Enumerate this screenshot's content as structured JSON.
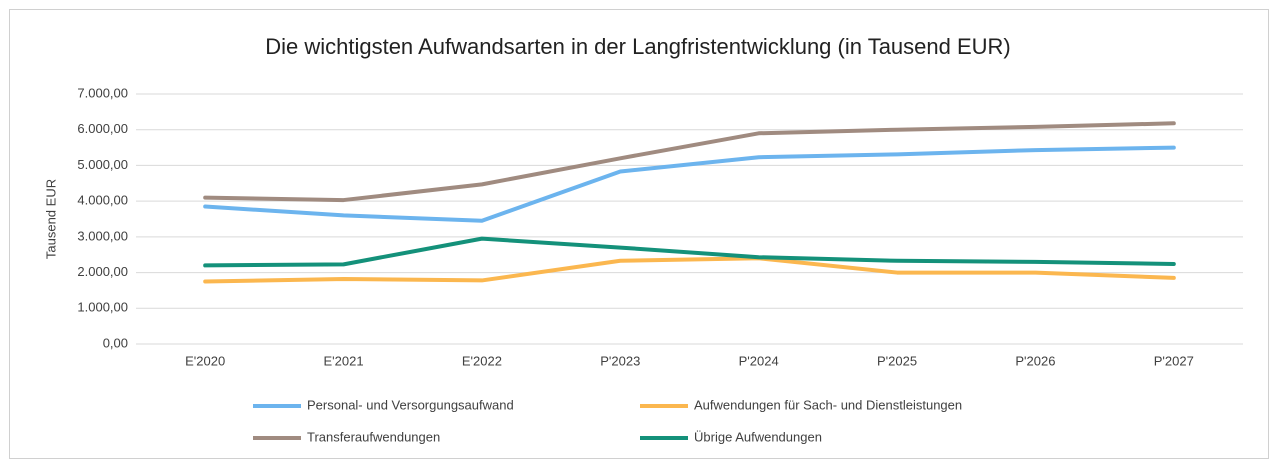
{
  "chart_data": {
    "type": "line",
    "title": "Die wichtigsten Aufwandsarten in der Langfristentwicklung (in Tausend EUR)",
    "y_label": "Tausend EUR",
    "categories": [
      "E'2020",
      "E'2021",
      "E'2022",
      "P'2023",
      "P'2024",
      "P'2025",
      "P'2026",
      "P'2027"
    ],
    "series": [
      {
        "name": "Personal- und Versorgungsaufwand",
        "color": "#6cb4ee",
        "values": [
          3850,
          3600,
          3450,
          4830,
          5230,
          5310,
          5430,
          5500
        ]
      },
      {
        "name": "Aufwendungen für Sach- und Dienstleistungen",
        "color": "#fbb74f",
        "values": [
          1750,
          1820,
          1780,
          2330,
          2400,
          2000,
          2000,
          1850
        ]
      },
      {
        "name": "Transferaufwendungen",
        "color": "#a08b80",
        "values": [
          4100,
          4030,
          4470,
          5200,
          5900,
          6000,
          6080,
          6180
        ]
      },
      {
        "name": "Übrige Aufwendungen",
        "color": "#14917a",
        "values": [
          2200,
          2230,
          2950,
          2700,
          2430,
          2330,
          2300,
          2240
        ]
      }
    ],
    "ylim": [
      0,
      7000
    ],
    "yticks": [
      {
        "value": 0,
        "label": "0,00"
      },
      {
        "value": 1000,
        "label": "1.000,00"
      },
      {
        "value": 2000,
        "label": "2.000,00"
      },
      {
        "value": 3000,
        "label": "3.000,00"
      },
      {
        "value": 4000,
        "label": "4.000,00"
      },
      {
        "value": 5000,
        "label": "5.000,00"
      },
      {
        "value": 6000,
        "label": "6.000,00"
      },
      {
        "value": 7000,
        "label": "7.000,00"
      }
    ],
    "grid": true,
    "legend": "bottom"
  }
}
